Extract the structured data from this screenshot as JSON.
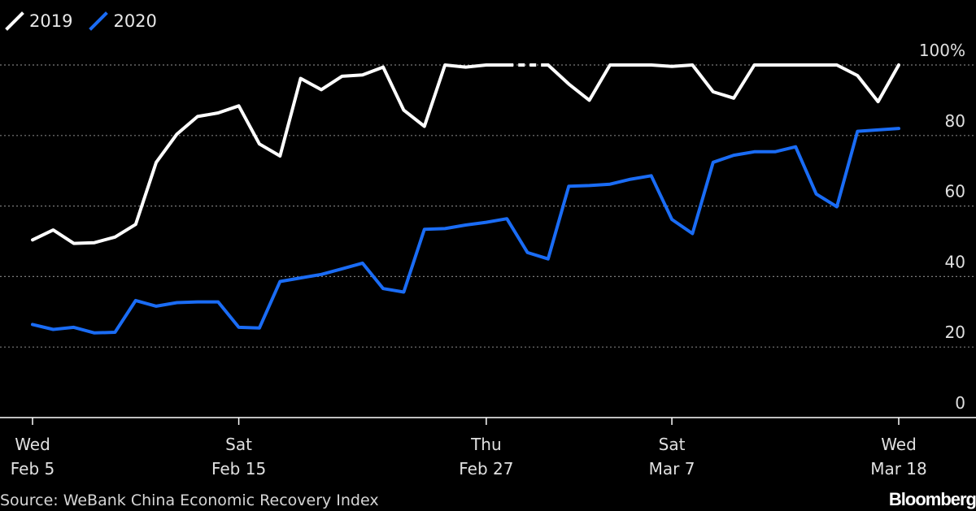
{
  "legend": {
    "items": [
      {
        "label": "2019",
        "color": "#ffffff"
      },
      {
        "label": "2020",
        "color": "#1a6cf5"
      }
    ]
  },
  "source": "Source: WeBank China Economic Recovery Index",
  "brand": "Bloomberg",
  "chart_data": {
    "type": "line",
    "ylim": [
      0,
      100
    ],
    "y_ticks": [
      {
        "value": 100,
        "label": "100%"
      },
      {
        "value": 80,
        "label": "80"
      },
      {
        "value": 60,
        "label": "60"
      },
      {
        "value": 40,
        "label": "40"
      },
      {
        "value": 20,
        "label": "20"
      },
      {
        "value": 0,
        "label": "0"
      }
    ],
    "x_range": [
      "2020-02-05",
      "2020-03-18"
    ],
    "x_ticks": [
      {
        "date": "2020-02-05",
        "line1": "Wed",
        "line2": "Feb 5"
      },
      {
        "date": "2020-02-15",
        "line1": "Sat",
        "line2": "Feb 15"
      },
      {
        "date": "2020-02-27",
        "line1": "Thu",
        "line2": "Feb 27"
      },
      {
        "date": "2020-03-07",
        "line1": "Sat",
        "line2": "Mar 7"
      },
      {
        "date": "2020-03-18",
        "line1": "Wed",
        "line2": "Mar 18"
      }
    ],
    "grid": true,
    "legend_position": "top-left",
    "series": [
      {
        "name": "2019",
        "color": "#ffffff",
        "x": [
          "2020-02-05",
          "2020-02-06",
          "2020-02-07",
          "2020-02-08",
          "2020-02-09",
          "2020-02-10",
          "2020-02-11",
          "2020-02-12",
          "2020-02-13",
          "2020-02-14",
          "2020-02-15",
          "2020-02-16",
          "2020-02-17",
          "2020-02-18",
          "2020-02-19",
          "2020-02-20",
          "2020-02-21",
          "2020-02-22",
          "2020-02-23",
          "2020-02-24",
          "2020-02-25",
          "2020-02-26",
          "2020-02-27",
          "2020-02-28",
          "2020-02-29",
          "2020-03-01",
          "2020-03-02",
          "2020-03-03",
          "2020-03-04",
          "2020-03-05",
          "2020-03-06",
          "2020-03-07",
          "2020-03-08",
          "2020-03-09",
          "2020-03-10",
          "2020-03-11",
          "2020-03-12",
          "2020-03-13",
          "2020-03-14",
          "2020-03-15",
          "2020-03-16",
          "2020-03-17",
          "2020-03-18"
        ],
        "values": [
          50.4,
          53.2,
          49.4,
          49.6,
          51.2,
          54.8,
          72.4,
          80.4,
          85.4,
          86.4,
          88.4,
          77.6,
          74.2,
          96.2,
          93.0,
          96.8,
          97.2,
          99.4,
          87.2,
          82.6,
          100.0,
          99.4,
          100.0,
          100.0,
          null,
          100.0,
          94.6,
          90.0,
          100.0,
          100.0,
          100.0,
          99.6,
          100.0,
          92.4,
          90.6,
          100.0,
          100.0,
          100.0,
          100.0,
          100.0,
          97.0,
          89.6,
          100.0
        ]
      },
      {
        "name": "2020",
        "color": "#1a6cf5",
        "x": [
          "2020-02-05",
          "2020-02-06",
          "2020-02-07",
          "2020-02-08",
          "2020-02-09",
          "2020-02-10",
          "2020-02-11",
          "2020-02-12",
          "2020-02-13",
          "2020-02-14",
          "2020-02-15",
          "2020-02-16",
          "2020-02-17",
          "2020-02-18",
          "2020-02-19",
          "2020-02-20",
          "2020-02-21",
          "2020-02-22",
          "2020-02-23",
          "2020-02-24",
          "2020-02-25",
          "2020-02-26",
          "2020-02-27",
          "2020-02-28",
          "2020-02-29",
          "2020-03-01",
          "2020-03-02",
          "2020-03-03",
          "2020-03-04",
          "2020-03-05",
          "2020-03-06",
          "2020-03-07",
          "2020-03-08",
          "2020-03-09",
          "2020-03-10",
          "2020-03-11",
          "2020-03-12",
          "2020-03-13",
          "2020-03-14",
          "2020-03-15",
          "2020-03-16",
          "2020-03-17",
          "2020-03-18"
        ],
        "values": [
          26.4,
          25.0,
          25.6,
          24.0,
          24.2,
          33.2,
          31.6,
          32.6,
          32.8,
          32.8,
          25.6,
          25.4,
          38.6,
          39.6,
          40.6,
          42.2,
          43.8,
          36.6,
          35.6,
          53.4,
          53.6,
          54.6,
          55.4,
          56.4,
          46.8,
          45.0,
          65.6,
          65.8,
          66.2,
          67.6,
          68.6,
          56.2,
          52.2,
          72.4,
          74.4,
          75.4,
          75.4,
          76.8,
          63.4,
          59.8,
          81.2,
          81.6,
          82.0
        ]
      }
    ]
  }
}
